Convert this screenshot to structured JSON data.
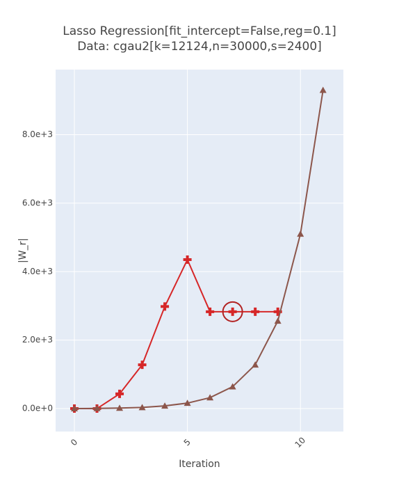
{
  "chart_data": {
    "type": "line",
    "title": "Lasso Regression[fit_intercept=False,reg=0.1]",
    "subtitle": "Data: cgau2[k=12124,n=30000,s=2400]",
    "x_label": "Iteration",
    "y_label": "|W_r|",
    "xlim": [
      -0.83,
      11.9
    ],
    "ylim": [
      -670,
      9900
    ],
    "xticks": [
      0,
      5,
      10
    ],
    "yticks": [
      {
        "value": 0,
        "label": "0.0e+0"
      },
      {
        "value": 2000,
        "label": "2.0e+3"
      },
      {
        "value": 4000,
        "label": "4.0e+3"
      },
      {
        "value": 6000,
        "label": "6.0e+3"
      },
      {
        "value": 8000,
        "label": "8.0e+3"
      }
    ],
    "grid": true,
    "series": [
      {
        "color": "#d62728",
        "marker": "cross",
        "highlight_index": 7,
        "x": [
          0,
          1,
          2,
          3,
          4,
          5,
          6,
          7,
          8,
          9
        ],
        "values": [
          0,
          0,
          430,
          1280,
          2980,
          4350,
          2830,
          2830,
          2830,
          2830
        ]
      },
      {
        "color": "#8c564b",
        "marker": "triangle",
        "x": [
          0,
          1,
          2,
          3,
          4,
          5,
          6,
          7,
          8,
          9,
          10,
          11
        ],
        "values": [
          0,
          5,
          15,
          35,
          80,
          160,
          320,
          640,
          1280,
          2560,
          5100,
          9300
        ]
      }
    ]
  }
}
